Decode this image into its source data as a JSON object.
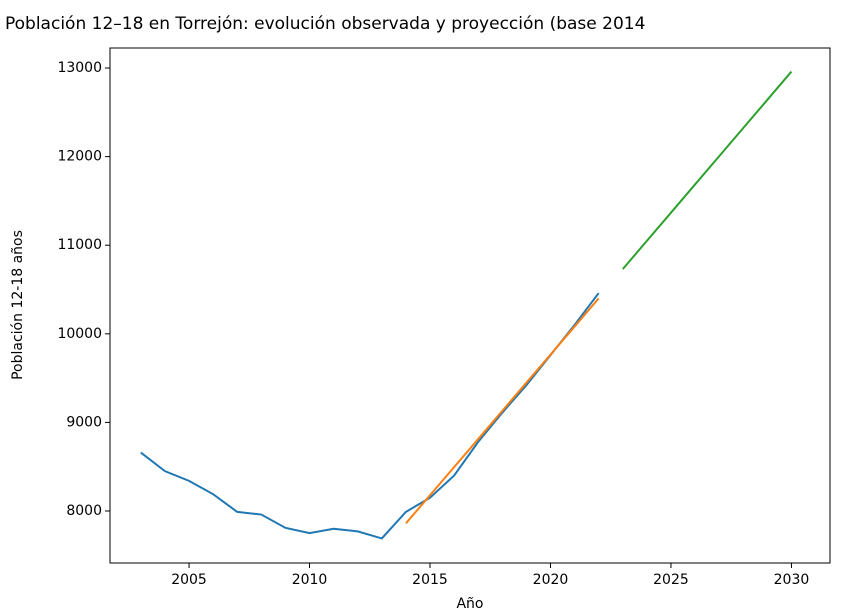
{
  "chart_data": {
    "type": "line",
    "title": "Población 12–18 en Torrejón: evolución observada y proyección (base 2014",
    "xlabel": "Año",
    "ylabel": "Población 12-18 años",
    "series": [
      {
        "color": "#1f77b4",
        "x": [
          2003,
          2004,
          2005,
          2006,
          2007,
          2008,
          2009,
          2010,
          2011,
          2012,
          2013,
          2014,
          2015,
          2016,
          2017,
          2018,
          2019,
          2020,
          2021,
          2022
        ],
        "values": [
          8660,
          8450,
          8340,
          8190,
          7990,
          7960,
          7810,
          7750,
          7800,
          7770,
          7690,
          7990,
          8150,
          8400,
          8780,
          9110,
          9420,
          9760,
          10100,
          10460
        ]
      },
      {
        "color": "#ff7f0e",
        "x": [
          2014,
          2015,
          2016,
          2017,
          2018,
          2019,
          2020,
          2021,
          2022
        ],
        "values": [
          7860,
          8178,
          8495,
          8812,
          9130,
          9448,
          9765,
          10082,
          10400
        ]
      },
      {
        "color": "#2ca02c",
        "x": [
          2023,
          2024,
          2025,
          2026,
          2027,
          2028,
          2029,
          2030
        ],
        "values": [
          10730,
          11049,
          11367,
          11686,
          12004,
          12323,
          12641,
          12960
        ]
      }
    ],
    "xlim": [
      2001.72,
      2031.6
    ],
    "xticks": [
      2005,
      2010,
      2015,
      2020,
      2025,
      2030
    ],
    "ylim": [
      7413,
      13226
    ],
    "yticks": [
      8000,
      9000,
      10000,
      11000,
      12000,
      13000
    ]
  }
}
